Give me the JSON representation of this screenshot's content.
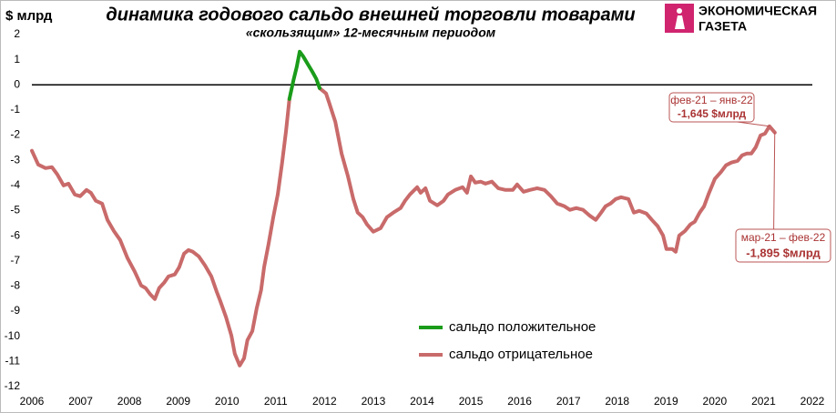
{
  "chart_data": {
    "type": "line",
    "title": "динамика годового сальдо внешней торговли товарами",
    "subtitle": "«скользящим» 12-месячным периодом",
    "y_label": "$ млрд",
    "logo": [
      "ЭКОНОМИЧЕСКАЯ",
      "ГАЗЕТА"
    ],
    "xlim": [
      2006,
      2022
    ],
    "ylim": [
      -12,
      2
    ],
    "xticks": [
      2006,
      2007,
      2008,
      2009,
      2010,
      2011,
      2012,
      2013,
      2014,
      2015,
      2016,
      2017,
      2018,
      2019,
      2020,
      2021,
      2022
    ],
    "yticks": [
      2,
      1,
      0,
      -1,
      -2,
      -3,
      -4,
      -5,
      -6,
      -7,
      -8,
      -9,
      -10,
      -11,
      -12
    ],
    "legend": "lower center",
    "x": [
      2006.0,
      2006.13,
      2006.28,
      2006.41,
      2006.52,
      2006.65,
      2006.75,
      2006.88,
      2006.99,
      2007.12,
      2007.21,
      2007.31,
      2007.44,
      2007.55,
      2007.68,
      2007.81,
      2007.96,
      2008.11,
      2008.24,
      2008.33,
      2008.43,
      2008.52,
      2008.61,
      2008.71,
      2008.8,
      2008.93,
      2009.02,
      2009.12,
      2009.21,
      2009.3,
      2009.42,
      2009.55,
      2009.68,
      2009.79,
      2009.86,
      2009.98,
      2010.09,
      2010.16,
      2010.26,
      2010.35,
      2010.42,
      2010.52,
      2010.61,
      2010.7,
      2010.76,
      2010.85,
      2010.95,
      2011.04,
      2011.13,
      2011.21,
      2011.28,
      2011.36,
      2011.43,
      2011.49,
      2011.56,
      2011.66,
      2011.75,
      2011.83,
      2011.9,
      2012.03,
      2012.1,
      2012.22,
      2012.35,
      2012.48,
      2012.59,
      2012.68,
      2012.78,
      2012.87,
      2013.0,
      2013.15,
      2013.28,
      2013.41,
      2013.56,
      2013.65,
      2013.75,
      2013.9,
      2013.97,
      2014.07,
      2014.16,
      2014.31,
      2014.44,
      2014.53,
      2014.68,
      2014.83,
      2014.92,
      2015.0,
      2015.09,
      2015.2,
      2015.3,
      2015.43,
      2015.56,
      2015.71,
      2015.86,
      2015.95,
      2016.08,
      2016.21,
      2016.36,
      2016.51,
      2016.64,
      2016.77,
      2016.92,
      2017.03,
      2017.16,
      2017.3,
      2017.43,
      2017.56,
      2017.67,
      2017.76,
      2017.86,
      2017.97,
      2018.08,
      2018.23,
      2018.34,
      2018.45,
      2018.6,
      2018.71,
      2018.83,
      2018.94,
      2019.01,
      2019.13,
      2019.2,
      2019.27,
      2019.39,
      2019.5,
      2019.59,
      2019.69,
      2019.78,
      2019.87,
      2020.0,
      2020.13,
      2020.23,
      2020.34,
      2020.47,
      2020.56,
      2020.66,
      2020.75,
      2020.84,
      2020.94,
      2021.03,
      2021.12,
      2021.23
    ],
    "series": [
      {
        "name": "сальдо положительное",
        "color": "#1a9c1a",
        "values": [
          null,
          null,
          null,
          null,
          null,
          null,
          null,
          null,
          null,
          null,
          null,
          null,
          null,
          null,
          null,
          null,
          null,
          null,
          null,
          null,
          null,
          null,
          null,
          null,
          null,
          null,
          null,
          null,
          null,
          null,
          null,
          null,
          null,
          null,
          null,
          null,
          null,
          null,
          null,
          null,
          null,
          null,
          null,
          null,
          null,
          null,
          null,
          null,
          null,
          null,
          -0.56,
          0.16,
          0.71,
          1.32,
          1.14,
          0.81,
          0.52,
          0.24,
          -0.13,
          null,
          null,
          null,
          null,
          null,
          null,
          null,
          null,
          null,
          null,
          null,
          null,
          null,
          null,
          null,
          null,
          null,
          null,
          null,
          null,
          null,
          null,
          null,
          null,
          null,
          null,
          null,
          null,
          null,
          null,
          null,
          null,
          null,
          null,
          null,
          null,
          null,
          null,
          null,
          null,
          null,
          null,
          null,
          null,
          null,
          null,
          null,
          null,
          null,
          null,
          null,
          null,
          null,
          null,
          null,
          null,
          null,
          null,
          null,
          null,
          null,
          null,
          null,
          null,
          null,
          null,
          null,
          null,
          null,
          null,
          null,
          null,
          null,
          null,
          null,
          null,
          null,
          null,
          null,
          null,
          null,
          null
        ]
      },
      {
        "name": "сальдо отрицательное",
        "color": "#c96a6a",
        "values": [
          -2.62,
          -3.17,
          -3.31,
          -3.27,
          -3.56,
          -4.0,
          -3.93,
          -4.36,
          -4.43,
          -4.18,
          -4.29,
          -4.61,
          -4.72,
          -5.37,
          -5.81,
          -6.17,
          -6.89,
          -7.43,
          -7.98,
          -8.08,
          -8.34,
          -8.52,
          -8.08,
          -7.87,
          -7.62,
          -7.54,
          -7.25,
          -6.71,
          -6.57,
          -6.64,
          -6.82,
          -7.18,
          -7.62,
          -8.23,
          -8.59,
          -9.24,
          -9.97,
          -10.69,
          -11.16,
          -10.87,
          -10.15,
          -9.79,
          -8.88,
          -8.16,
          -7.25,
          -6.35,
          -5.26,
          -4.36,
          -3.09,
          -1.83,
          -0.56,
          null,
          null,
          null,
          null,
          null,
          null,
          null,
          -0.13,
          -0.34,
          -0.74,
          -1.47,
          -2.73,
          -3.64,
          -4.54,
          -5.08,
          -5.26,
          -5.55,
          -5.84,
          -5.7,
          -5.26,
          -5.08,
          -4.9,
          -4.61,
          -4.36,
          -4.07,
          -4.29,
          -4.11,
          -4.61,
          -4.79,
          -4.61,
          -4.36,
          -4.18,
          -4.07,
          -4.29,
          -3.64,
          -3.89,
          -3.85,
          -3.93,
          -3.85,
          -4.11,
          -4.18,
          -4.18,
          -3.96,
          -4.25,
          -4.18,
          -4.11,
          -4.18,
          -4.43,
          -4.72,
          -4.83,
          -4.97,
          -4.9,
          -4.97,
          -5.19,
          -5.37,
          -5.08,
          -4.83,
          -4.72,
          -4.54,
          -4.47,
          -4.54,
          -5.08,
          -5.01,
          -5.12,
          -5.37,
          -5.62,
          -5.99,
          -6.53,
          -6.53,
          -6.64,
          -5.99,
          -5.81,
          -5.55,
          -5.44,
          -5.08,
          -4.83,
          -4.36,
          -3.74,
          -3.46,
          -3.2,
          -3.09,
          -3.02,
          -2.8,
          -2.73,
          -2.73,
          -2.48,
          -2.01,
          -1.94,
          -1.645,
          -1.895
        ]
      }
    ],
    "annotations": [
      {
        "period": "фев-21 – янв-22",
        "text": "-1,645 $млрд"
      },
      {
        "period": "мар-21 – фев-22",
        "text": "-1,895 $млрд"
      }
    ]
  }
}
